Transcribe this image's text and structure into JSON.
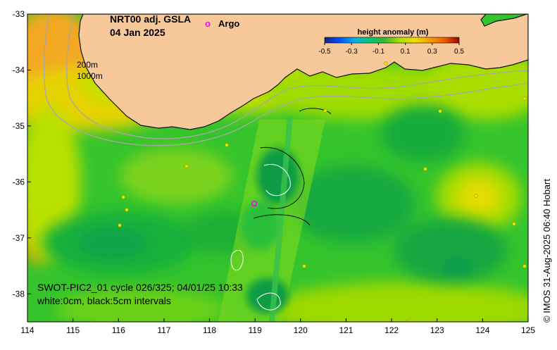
{
  "map": {
    "title": "NRT00 adj. GSLA",
    "date": "04 Jan 2025",
    "legend_marker_label": "Argo",
    "legend_marker_symbol": "o",
    "isobath_labels": [
      "200m",
      "1000m"
    ],
    "swath_label": "SWOT-PIC2_01 cycle 026/325; 04/01/25 10:33",
    "contour_note": "white:0cm, black:5cm intervals",
    "credit": "© IMOS 31-Aug-2025 06:40 Hobart",
    "x_ticks": [
      "114",
      "115",
      "116",
      "117",
      "118",
      "119",
      "120",
      "121",
      "122",
      "123",
      "124",
      "125"
    ],
    "y_ticks": [
      "-33",
      "-34",
      "-35",
      "-36",
      "-37",
      "-38"
    ],
    "x_range": [
      114,
      125
    ],
    "y_range": [
      -38.5,
      -33
    ]
  },
  "colorbar": {
    "title": "height anomaly (m)",
    "tick_labels": [
      "-0.5",
      "-0.3",
      "-0.1",
      "0.1",
      "0.3",
      "0.5"
    ],
    "range": [
      -0.5,
      0.5
    ],
    "colors": [
      "#1a237e",
      "#0050ff",
      "#00b0f0",
      "#00c878",
      "#35b832",
      "#a8e000",
      "#f0e000",
      "#f8a000",
      "#f06000",
      "#a00000"
    ]
  },
  "colors": {
    "land": "#f7c89a",
    "ocean_base": "#2fc22a",
    "coast": "#111111",
    "isobath": "#a8a8a8",
    "argo_marker": "#ff00ff"
  }
}
